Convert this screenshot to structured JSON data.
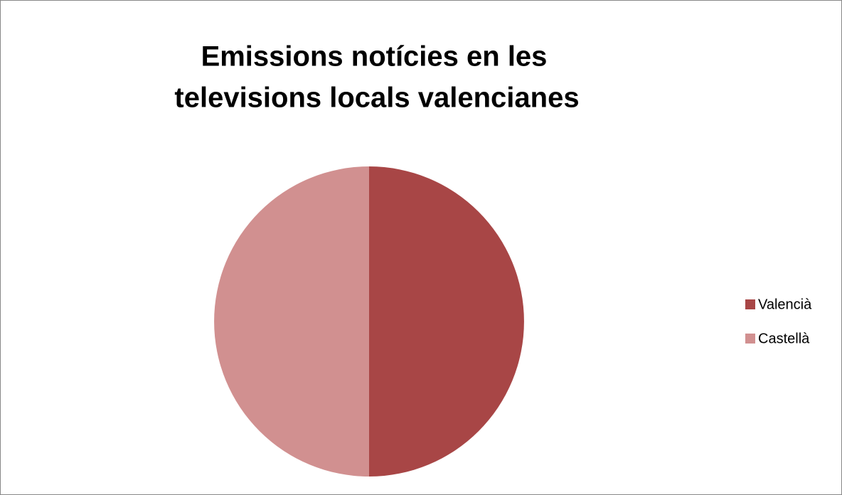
{
  "chart_data": {
    "type": "pie",
    "title": [
      "Emissions notícies en les",
      "televisions locals valencianes"
    ],
    "categories": [
      "Valencià",
      "Castellà"
    ],
    "values": [
      50,
      50
    ],
    "colors": [
      "#a84646",
      "#d19090"
    ],
    "legend": "right"
  }
}
